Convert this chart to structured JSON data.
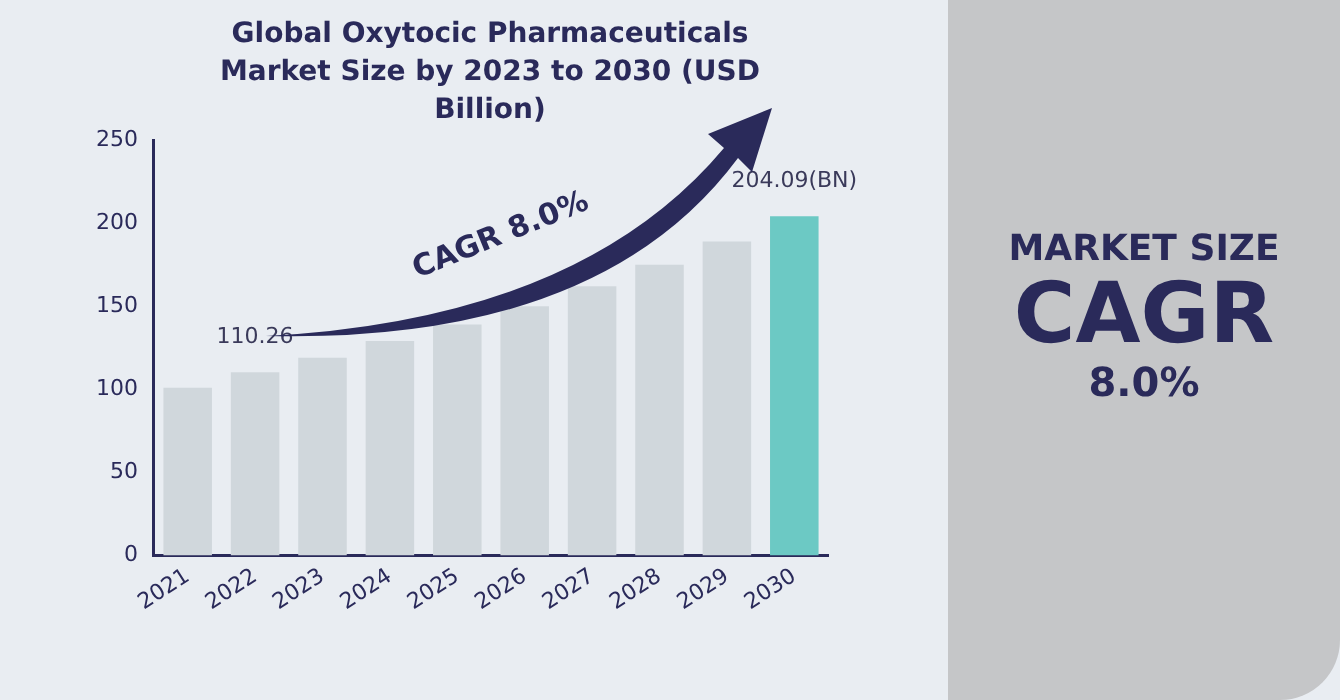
{
  "chart_data": {
    "type": "bar",
    "title": "Global Oxytocic Pharmaceuticals Market Size by 2023 to 2030 (USD Billion)",
    "categories": [
      "2021",
      "2022",
      "2023",
      "2024",
      "2025",
      "2026",
      "2027",
      "2028",
      "2029",
      "2030"
    ],
    "values": [
      101,
      110.26,
      119,
      129,
      139,
      150,
      162,
      175,
      189,
      204.09
    ],
    "colors": [
      "#d0d7dc",
      "#d0d7dc",
      "#d0d7dc",
      "#d0d7dc",
      "#d0d7dc",
      "#d0d7dc",
      "#d0d7dc",
      "#d0d7dc",
      "#d0d7dc",
      "#6cc9c4"
    ],
    "value_labels": [
      null,
      "110.26",
      null,
      null,
      null,
      null,
      null,
      null,
      null,
      "204.09(BN)"
    ],
    "ylim": [
      0,
      250
    ],
    "yticks": [
      0,
      50,
      100,
      150,
      200,
      250
    ],
    "annotations": [
      "CAGR 8.0%",
      "MARKET SIZE",
      "CAGR",
      "8.0%"
    ]
  }
}
